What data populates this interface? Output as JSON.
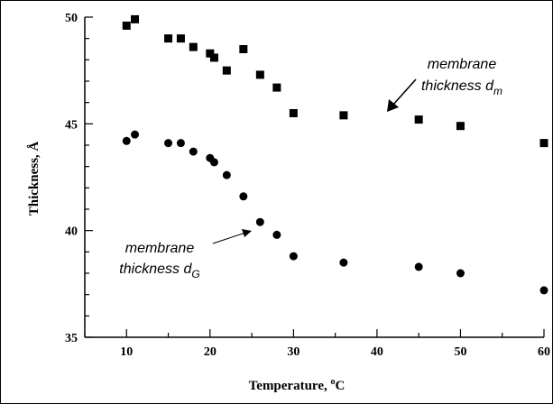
{
  "chart_data": {
    "type": "scatter",
    "xlabel": "Temperature, ",
    "xlabel_unit": "C",
    "xlabel_degree": "o",
    "ylabel": "Thickness, Å",
    "xlim": [
      5,
      60
    ],
    "ylim": [
      35,
      50
    ],
    "x_ticks": [
      "10",
      "20",
      "30",
      "40",
      "50",
      "60"
    ],
    "y_ticks": [
      "35",
      "40",
      "45",
      "50"
    ],
    "grid": false,
    "series": [
      {
        "marker": "square",
        "color": "#000000",
        "points": [
          {
            "x": 10,
            "y": 49.6
          },
          {
            "x": 11,
            "y": 49.9
          },
          {
            "x": 15,
            "y": 49.0
          },
          {
            "x": 16.5,
            "y": 49.0
          },
          {
            "x": 18,
            "y": 48.6
          },
          {
            "x": 20,
            "y": 48.3
          },
          {
            "x": 20.5,
            "y": 48.1
          },
          {
            "x": 22,
            "y": 47.5
          },
          {
            "x": 24,
            "y": 48.5
          },
          {
            "x": 26,
            "y": 47.3
          },
          {
            "x": 28,
            "y": 46.7
          },
          {
            "x": 30,
            "y": 45.5
          },
          {
            "x": 36,
            "y": 45.4
          },
          {
            "x": 45,
            "y": 45.2
          },
          {
            "x": 50,
            "y": 44.9
          },
          {
            "x": 60,
            "y": 44.1
          }
        ]
      },
      {
        "marker": "circle",
        "color": "#000000",
        "points": [
          {
            "x": 10,
            "y": 44.2
          },
          {
            "x": 11,
            "y": 44.5
          },
          {
            "x": 15,
            "y": 44.1
          },
          {
            "x": 16.5,
            "y": 44.1
          },
          {
            "x": 18,
            "y": 43.7
          },
          {
            "x": 20,
            "y": 43.4
          },
          {
            "x": 20.5,
            "y": 43.2
          },
          {
            "x": 22,
            "y": 42.6
          },
          {
            "x": 24,
            "y": 41.6
          },
          {
            "x": 26,
            "y": 40.4
          },
          {
            "x": 28,
            "y": 39.8
          },
          {
            "x": 30,
            "y": 38.8
          },
          {
            "x": 36,
            "y": 38.5
          },
          {
            "x": 45,
            "y": 38.3
          },
          {
            "x": 50,
            "y": 38.0
          },
          {
            "x": 60,
            "y": 37.2
          }
        ]
      }
    ],
    "annotations": [
      {
        "line1": "membrane",
        "line2": "thickness d",
        "subscript": "m"
      },
      {
        "line1": "membrane",
        "line2": "thickness d",
        "subscript": "G"
      }
    ]
  }
}
